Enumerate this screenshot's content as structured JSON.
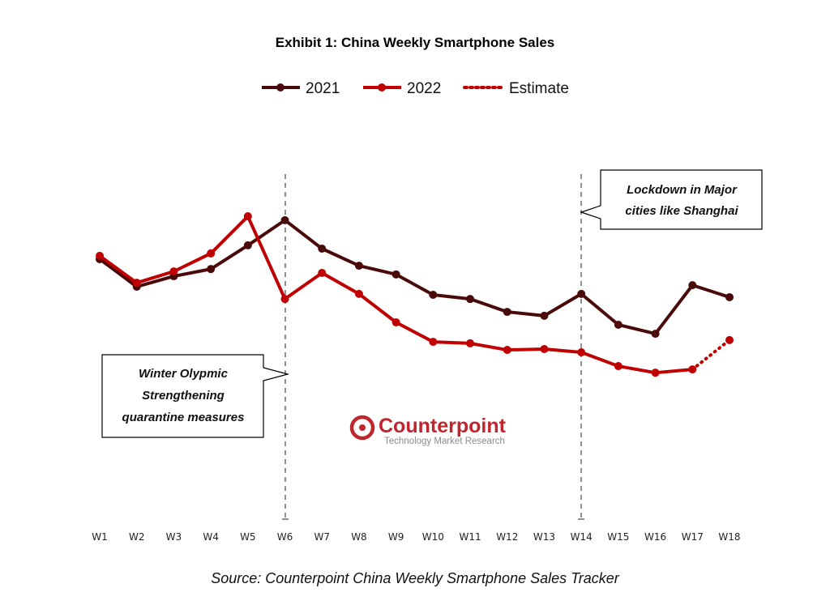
{
  "chart_data": {
    "type": "line",
    "title": "Exhibit 1: China Weekly Smartphone Sales",
    "xlabel": "",
    "ylabel": "",
    "y_note": "no y-axis scale shown; values are relative estimates (index)",
    "ylim": [
      0,
      105
    ],
    "grid": false,
    "legend_position": "top-center",
    "categories": [
      "W1",
      "W2",
      "W3",
      "W4",
      "W5",
      "W6",
      "W7",
      "W8",
      "W9",
      "W10",
      "W11",
      "W12",
      "W13",
      "W14",
      "W15",
      "W16",
      "W17",
      "W18"
    ],
    "series": [
      {
        "name": "2021",
        "color": "#4a0a0a",
        "values": [
          86.5,
          77.3,
          80.8,
          83.2,
          91.1,
          99.5,
          90.0,
          84.3,
          81.4,
          74.6,
          73.2,
          68.9,
          67.6,
          74.9,
          64.6,
          61.6,
          77.8,
          73.8
        ]
      },
      {
        "name": "2022",
        "color": "#c00000",
        "values": [
          87.6,
          78.6,
          82.4,
          88.4,
          100.8,
          73.2,
          81.9,
          74.9,
          65.4,
          58.9,
          58.4,
          56.2,
          56.5,
          55.4,
          50.8,
          48.6,
          49.7,
          null
        ]
      },
      {
        "name": "Estimate",
        "color": "#c00000",
        "dotted": true,
        "values": [
          null,
          null,
          null,
          null,
          null,
          null,
          null,
          null,
          null,
          null,
          null,
          null,
          null,
          null,
          null,
          null,
          49.7,
          59.5
        ]
      }
    ],
    "annotations": [
      {
        "week": "W6",
        "lines": [
          "Winter Olypmic",
          "Strengthening",
          "quarantine measures"
        ]
      },
      {
        "week": "W14",
        "lines": [
          "Lockdown in Major",
          "cities like Shanghai"
        ]
      }
    ]
  },
  "source": "Source: Counterpoint China Weekly Smartphone Sales Tracker",
  "logo": {
    "name": "Counterpoint",
    "tagline": "Technology Market Research"
  }
}
